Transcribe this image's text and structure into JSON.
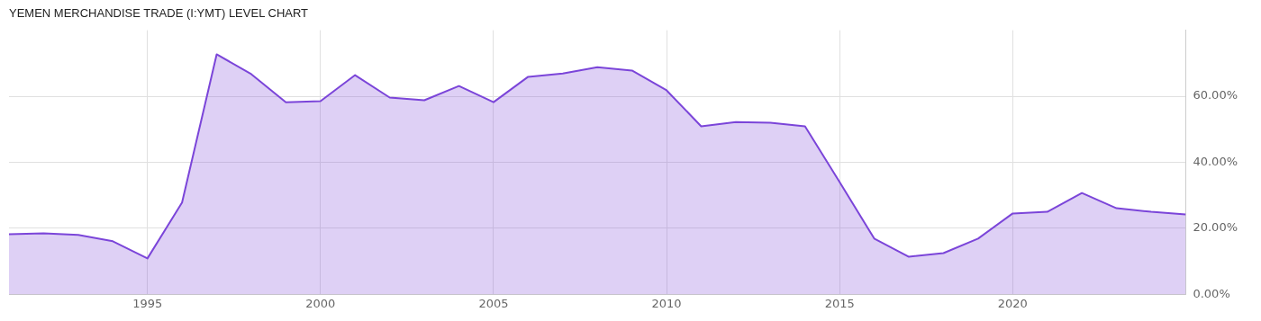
{
  "chart_data": {
    "type": "area",
    "title": "YEMEN MERCHANDISE TRADE (I:YMT) LEVEL CHART",
    "x": [
      1991,
      1992,
      1993,
      1994,
      1995,
      1996,
      1997,
      1998,
      1999,
      2000,
      2001,
      2002,
      2003,
      2004,
      2005,
      2006,
      2007,
      2008,
      2009,
      2010,
      2011,
      2012,
      2013,
      2014,
      2015,
      2016,
      2017,
      2018,
      2019,
      2020,
      2021,
      2022,
      2023,
      2024,
      2025
    ],
    "series": [
      {
        "color": "#7b45d9",
        "values": [
          18.2,
          18.5,
          18.0,
          16.1,
          10.9,
          27.8,
          72.7,
          66.7,
          58.2,
          58.5,
          66.4,
          59.6,
          58.8,
          63.1,
          58.2,
          65.9,
          66.9,
          68.8,
          67.8,
          61.8,
          50.9,
          52.2,
          52.0,
          50.9,
          34.0,
          16.9,
          11.4,
          12.5,
          16.9,
          24.5,
          25.0,
          30.7,
          26.1,
          25.0,
          24.2
        ]
      }
    ],
    "xlim": [
      1991,
      2025
    ],
    "xticks": [
      1995,
      2000,
      2005,
      2010,
      2015,
      2020
    ],
    "ylim": [
      0,
      80
    ],
    "yticks": [
      {
        "value": 0,
        "label": "0.00%"
      },
      {
        "value": 20,
        "label": "20.00%"
      },
      {
        "value": 40,
        "label": "40.00%"
      },
      {
        "value": 60,
        "label": "60.00%"
      }
    ],
    "grid": true,
    "legend": false
  }
}
